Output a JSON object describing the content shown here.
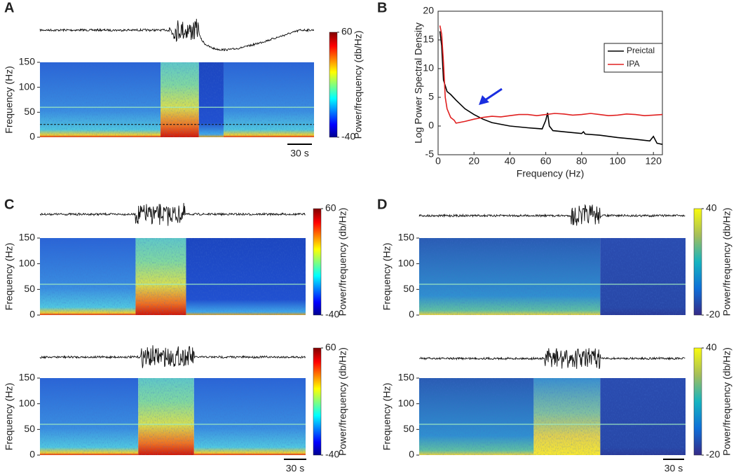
{
  "chart_data": [
    {
      "type": "spectrogram",
      "label": "A",
      "ylabel": "Frequency (Hz)",
      "ylim": [
        0,
        150
      ],
      "yticks": [
        0,
        50,
        100,
        150
      ],
      "colormap": "jet",
      "clim": [
        -40,
        60
      ],
      "cticks": [
        -40,
        60
      ],
      "colorbar_label": "Power/frequency (db/Hz)",
      "scalebar": "30 s"
    },
    {
      "type": "line",
      "label": "B",
      "xlabel": "Frequency (Hz)",
      "ylabel": "Log Power Spectral Density",
      "xlim": [
        0,
        125
      ],
      "xticks": [
        0,
        20,
        40,
        60,
        80,
        100,
        120
      ],
      "ylim": [
        -5,
        20
      ],
      "yticks": [
        -5,
        0,
        5,
        10,
        15,
        20
      ],
      "legend": "right",
      "series": [
        {
          "name": "Preictal",
          "color": "#000000",
          "x": [
            1,
            2,
            3,
            5,
            7,
            10,
            15,
            20,
            25,
            30,
            40,
            50,
            58,
            60,
            61,
            62,
            64,
            70,
            80,
            81,
            82,
            90,
            100,
            110,
            118,
            120,
            122,
            125
          ],
          "values": [
            16.5,
            14,
            8,
            6,
            5.5,
            4.5,
            3,
            2,
            1.2,
            0.6,
            0,
            -0.3,
            -0.5,
            1,
            2.3,
            0,
            -0.8,
            -1,
            -1.3,
            -1,
            -1.4,
            -1.6,
            -2,
            -2.3,
            -2.6,
            -1.8,
            -3,
            -3.2
          ]
        },
        {
          "name": "IPA",
          "color": "#e02020",
          "x": [
            1,
            2,
            3,
            4,
            5,
            7,
            9,
            10,
            15,
            20,
            25,
            30,
            35,
            40,
            45,
            50,
            55,
            60,
            65,
            70,
            75,
            80,
            85,
            90,
            95,
            100,
            105,
            110,
            115,
            120,
            125
          ],
          "values": [
            17.5,
            16,
            11,
            5,
            3,
            1.5,
            1,
            0.5,
            0.8,
            1.2,
            1.5,
            1.7,
            1.6,
            1.8,
            2,
            2,
            1.8,
            2,
            2.2,
            2.1,
            1.9,
            2,
            2.2,
            2,
            1.8,
            1.9,
            2.1,
            2,
            1.8,
            1.9,
            2
          ]
        }
      ]
    },
    {
      "type": "spectrogram",
      "label": "C",
      "ylabel": "Frequency (Hz)",
      "ylim": [
        0,
        150
      ],
      "yticks": [
        0,
        50,
        100,
        150
      ],
      "colormap": "jet",
      "clim": [
        -40,
        60
      ],
      "cticks": [
        -40,
        60
      ],
      "colorbar_label": "Power/frequency (db/Hz)"
    },
    {
      "type": "spectrogram",
      "ylabel": "Frequency (Hz)",
      "ylim": [
        0,
        150
      ],
      "yticks": [
        0,
        50,
        100,
        150
      ],
      "colormap": "jet",
      "clim": [
        -40,
        60
      ],
      "cticks": [
        -40,
        60
      ],
      "colorbar_label": "Power/frequency (db/Hz)",
      "scalebar": "30 s"
    },
    {
      "type": "spectrogram",
      "label": "D",
      "ylabel": "Frequency (Hz)",
      "ylim": [
        0,
        150
      ],
      "yticks": [
        0,
        50,
        100,
        150
      ],
      "colormap": "parula",
      "clim": [
        -20,
        40
      ],
      "cticks": [
        -20,
        40
      ],
      "colorbar_label": "Power/frequency (db/Hz)"
    },
    {
      "type": "spectrogram",
      "ylabel": "Frequency (Hz)",
      "ylim": [
        0,
        150
      ],
      "yticks": [
        0,
        50,
        100,
        150
      ],
      "colormap": "parula",
      "clim": [
        -20,
        40
      ],
      "cticks": [
        -20,
        40
      ],
      "colorbar_label": "Power/frequency (db/Hz)",
      "scalebar": "30 s"
    }
  ]
}
